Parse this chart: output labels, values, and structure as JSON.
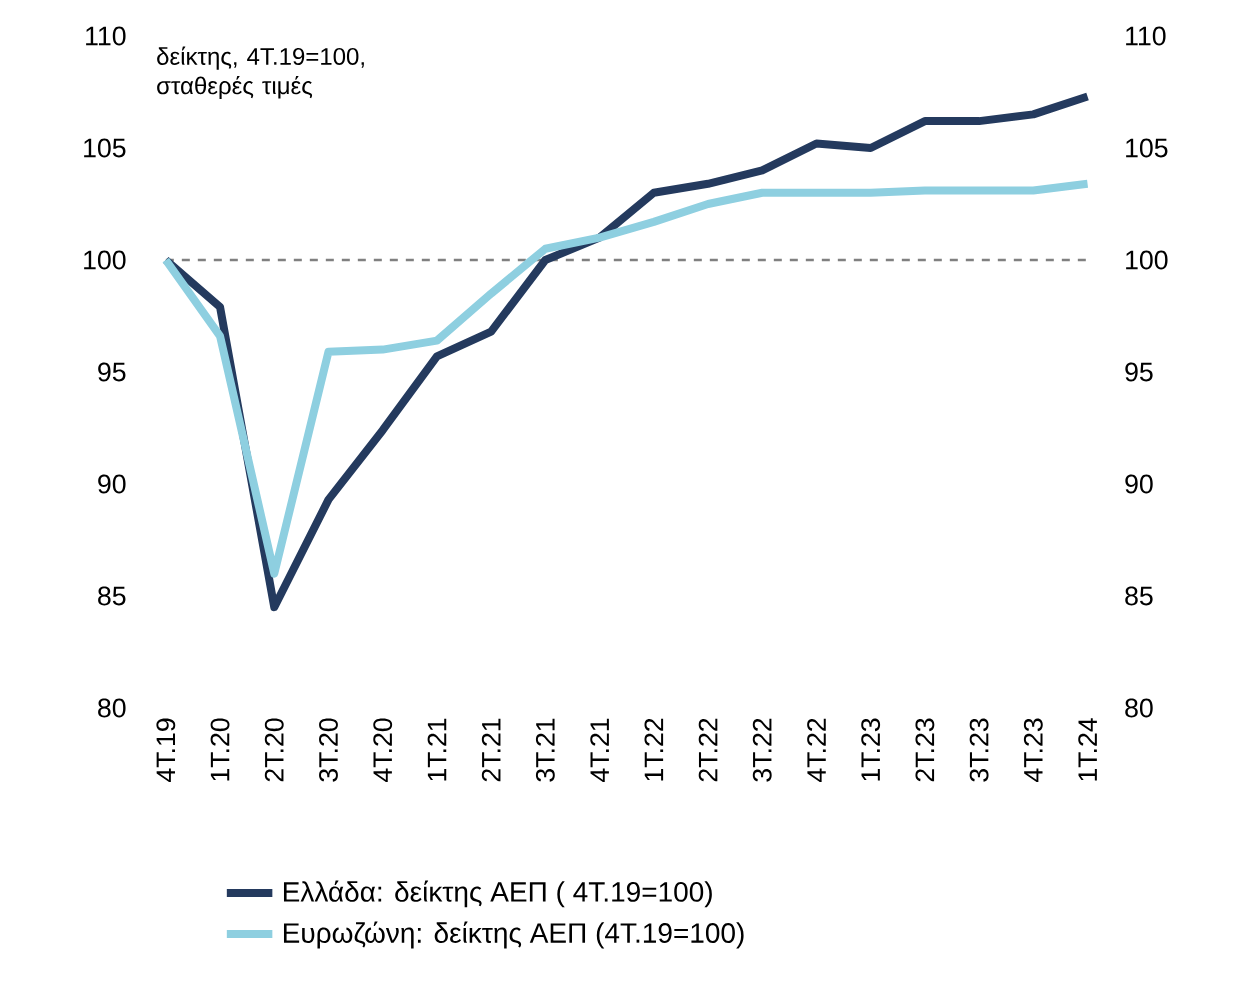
{
  "chart_data": {
    "type": "line",
    "categories": [
      "4Τ.19",
      "1Τ.20",
      "2Τ.20",
      "3Τ.20",
      "4Τ.20",
      "1Τ.21",
      "2Τ.21",
      "3Τ.21",
      "4Τ.21",
      "1Τ.22",
      "2Τ.22",
      "3Τ.22",
      "4Τ.22",
      "1Τ.23",
      "2Τ.23",
      "3Τ.23",
      "4Τ.23",
      "1Τ.24"
    ],
    "series": [
      {
        "name": "Ελλάδα: δείκτης ΑΕΠ ( 4Τ.19=100)",
        "color": "#243a5e",
        "values": [
          100,
          97.9,
          84.5,
          89.3,
          92.4,
          95.7,
          96.8,
          100.0,
          101.0,
          103.0,
          103.4,
          104.0,
          105.2,
          105.0,
          106.2,
          106.2,
          106.5,
          107.3
        ]
      },
      {
        "name": "Ευρωζώνη: δείκτης ΑΕΠ (4Τ.19=100)",
        "color": "#8ecfe0",
        "values": [
          100,
          96.6,
          86.0,
          95.9,
          96.0,
          96.4,
          98.5,
          100.5,
          101.0,
          101.7,
          102.5,
          103.0,
          103.0,
          103.0,
          103.1,
          103.1,
          103.1,
          103.4
        ]
      }
    ],
    "ylim": [
      80,
      110
    ],
    "yticks": [
      80,
      85,
      90,
      95,
      100,
      105,
      110
    ],
    "y2lim": [
      80,
      110
    ],
    "y2ticks": [
      80,
      85,
      90,
      95,
      100,
      105,
      110
    ],
    "ref_lines": [
      {
        "axis": "y",
        "value": 100,
        "color": "#808080",
        "line_style": "dashed"
      }
    ],
    "annotations": [
      "δείκτης, 4Τ.19=100, σταθερές τιμές"
    ],
    "legend": "bottom"
  }
}
